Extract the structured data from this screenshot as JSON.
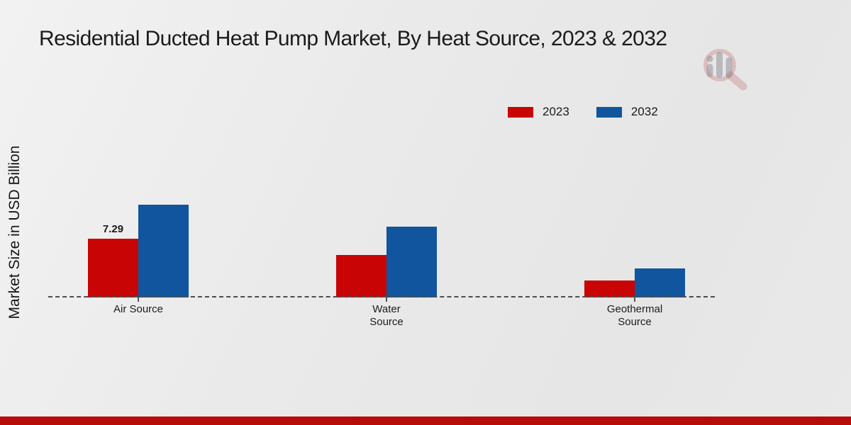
{
  "title": "Residential Ducted Heat Pump Market, By Heat Source, 2023 & 2032",
  "legend": {
    "items": [
      {
        "label": "2023",
        "color": "#c80404"
      },
      {
        "label": "2032",
        "color": "#10559e"
      }
    ]
  },
  "chart_data": {
    "type": "bar",
    "title": "Residential Ducted Heat Pump Market, By Heat Source, 2023 & 2032",
    "ylabel": "Market Size in USD Billion",
    "xlabel": "",
    "unit": "USD Billion",
    "categories": [
      "Air Source",
      "Water Source",
      "Geothermal Source"
    ],
    "categories_display": [
      [
        "Air Source"
      ],
      [
        "Water",
        "Source"
      ],
      [
        "Geothermal",
        "Source"
      ]
    ],
    "series": [
      {
        "name": "2023",
        "color": "#c80404",
        "values": [
          7.29,
          5.3,
          2.1
        ],
        "data_labels": [
          "7.29",
          "",
          ""
        ]
      },
      {
        "name": "2032",
        "color": "#10559e",
        "values": [
          11.5,
          8.8,
          3.6
        ],
        "data_labels": [
          "",
          "",
          ""
        ]
      }
    ],
    "ylim": [
      0,
      13
    ],
    "grid": false,
    "legend_position": "top-right",
    "baseline_style": "dashed"
  },
  "footer": {
    "bar_color": "#b80b0b"
  },
  "colors": {
    "background": "#e9e9e9",
    "baseline": "#4d4d4d",
    "text": "#1a1a1a",
    "watermark_ring": "rgba(192,98,98,0.30)",
    "watermark_bars": "rgba(148,148,154,0.55)"
  }
}
